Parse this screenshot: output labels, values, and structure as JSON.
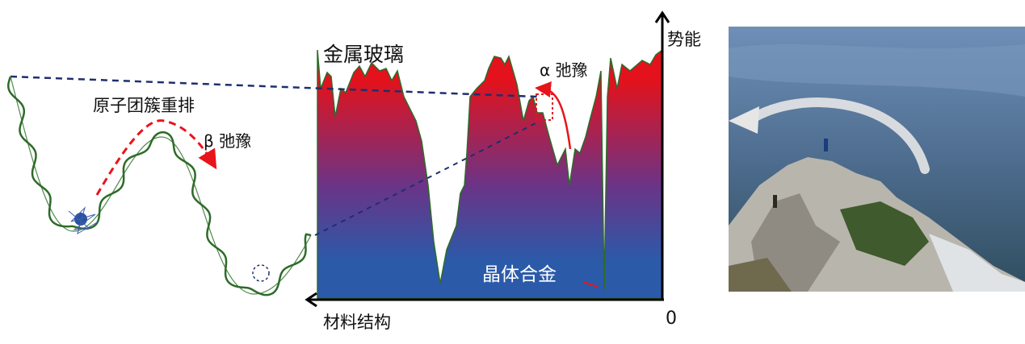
{
  "labels": {
    "metallic_glass": "金属玻璃",
    "cluster_rearrangement": "原子团簇重排",
    "beta_relaxation": "β 弛豫",
    "alpha_relaxation": "α 弛豫",
    "potential_energy": "势能",
    "material_structure": "材料结构",
    "origin": "0",
    "crystalline_alloy": "晶体合金"
  },
  "colors": {
    "landscape_top": "#e3121c",
    "landscape_bottom": "#2b5aa9",
    "curve": "#2e6b2a",
    "dashed_line": "#1f2f6e",
    "arrow_red": "#e8141c"
  }
}
